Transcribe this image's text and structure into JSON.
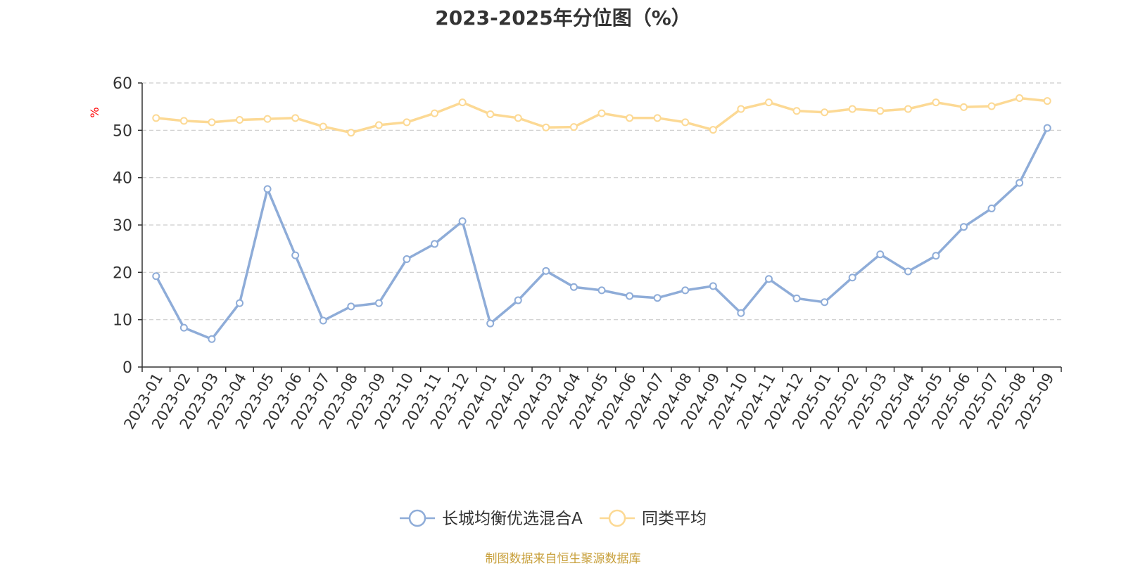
{
  "title": "2023-2025年分位图（%）",
  "y_unit": "%",
  "source": "制图数据来自恒生聚源数据库",
  "colors": {
    "series1": "#8eacd8",
    "series2": "#fcd994",
    "unit": "#ff0000",
    "source": "#c8a03c",
    "grid": "#cccccc",
    "axis": "#333333"
  },
  "chart_data": {
    "type": "line",
    "title": "2023-2025年分位图（%）",
    "ylabel": "%",
    "ylim": [
      0,
      60
    ],
    "yticks": [
      0,
      10,
      20,
      30,
      40,
      50,
      60
    ],
    "grid": true,
    "legend_position": "bottom",
    "x": [
      "2023-01",
      "2023-02",
      "2023-03",
      "2023-04",
      "2023-05",
      "2023-06",
      "2023-07",
      "2023-08",
      "2023-09",
      "2023-10",
      "2023-11",
      "2023-12",
      "2024-01",
      "2024-02",
      "2024-03",
      "2024-04",
      "2024-05",
      "2024-06",
      "2024-07",
      "2024-08",
      "2024-09",
      "2024-10",
      "2024-11",
      "2024-12",
      "2025-01",
      "2025-02",
      "2025-03",
      "2025-04",
      "2025-05",
      "2025-06",
      "2025-07",
      "2025-08",
      "2025-09"
    ],
    "series": [
      {
        "name": "长城均衡优选混合A",
        "values": [
          19.2,
          8.3,
          5.9,
          13.5,
          37.6,
          23.6,
          9.8,
          12.8,
          13.5,
          22.8,
          26.0,
          30.8,
          9.2,
          14.1,
          20.3,
          16.9,
          16.2,
          15.0,
          14.6,
          16.2,
          17.1,
          11.4,
          18.6,
          14.5,
          13.7,
          18.9,
          23.8,
          20.2,
          23.5,
          29.6,
          33.5,
          38.9,
          50.5
        ]
      },
      {
        "name": "同类平均",
        "values": [
          52.6,
          52.0,
          51.7,
          52.2,
          52.4,
          52.6,
          50.8,
          49.5,
          51.1,
          51.7,
          53.6,
          55.9,
          53.4,
          52.6,
          50.6,
          50.7,
          53.6,
          52.6,
          52.6,
          51.7,
          50.1,
          54.5,
          55.9,
          54.1,
          53.8,
          54.5,
          54.1,
          54.5,
          55.9,
          54.9,
          55.1,
          56.8,
          56.2
        ]
      }
    ]
  }
}
